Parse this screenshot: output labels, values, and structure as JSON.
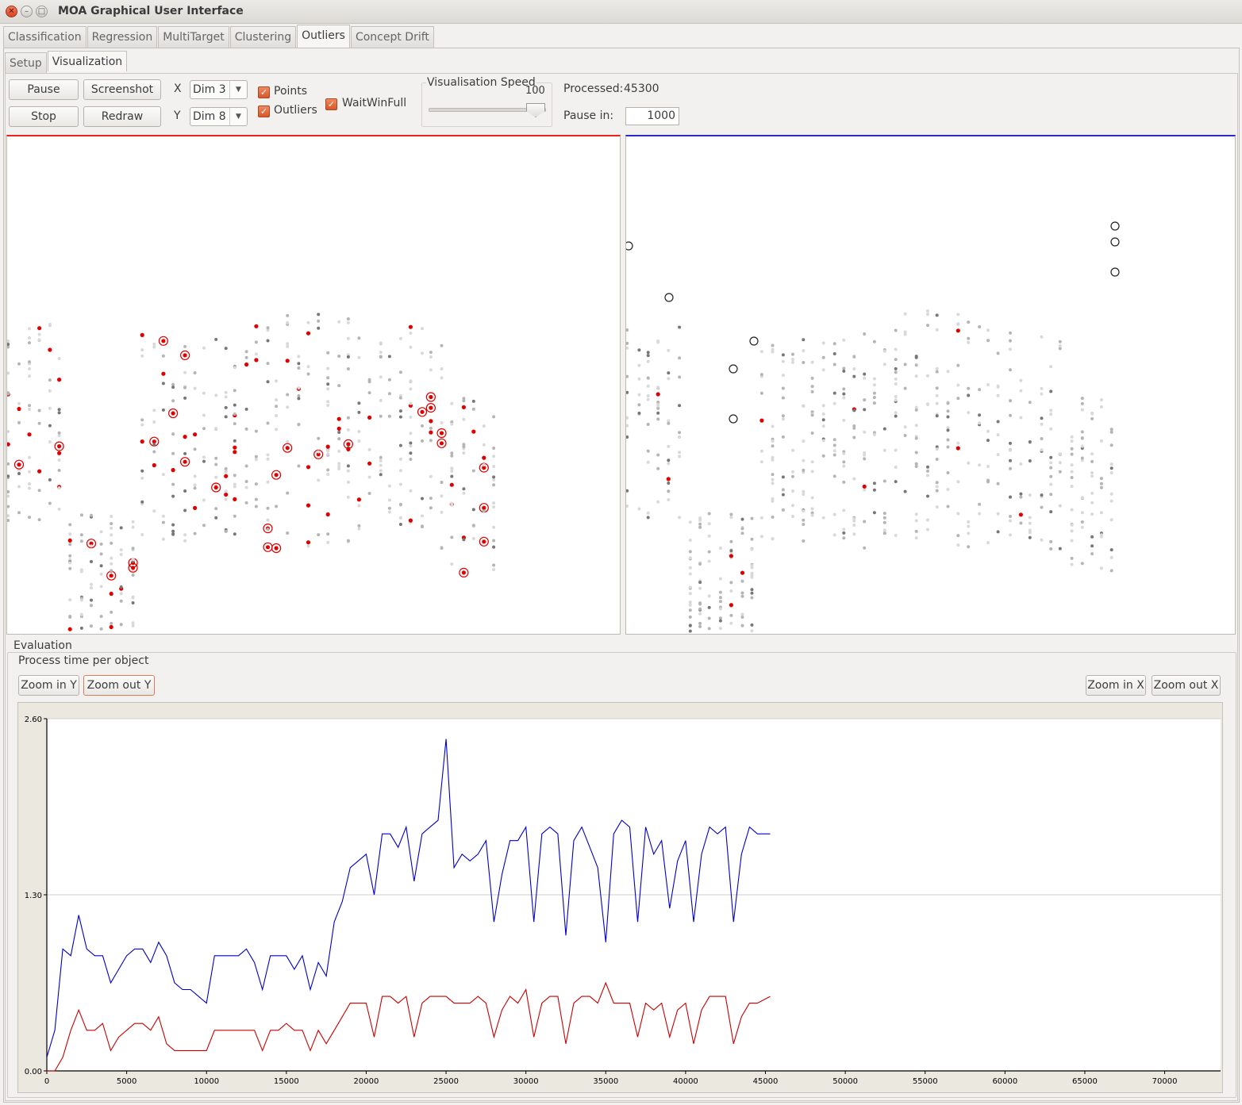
{
  "window": {
    "title": "MOA Graphical User Interface"
  },
  "tabs": [
    "Classification",
    "Regression",
    "MultiTarget",
    "Clustering",
    "Outliers",
    "Concept Drift"
  ],
  "active_tab": "Outliers",
  "subtabs": [
    "Setup",
    "Visualization"
  ],
  "active_subtab": "Visualization",
  "controls": {
    "pause": "Pause",
    "screenshot": "Screenshot",
    "stop": "Stop",
    "redraw": "Redraw",
    "x_label": "X",
    "y_label": "Y",
    "x_dim": "Dim 3",
    "y_dim": "Dim 8",
    "points": "Points",
    "outliers": "Outliers",
    "waitwinfull": "WaitWinFull",
    "speed_title": "Visualisation Speed",
    "speed_value": "100",
    "processed_label": "Processed:",
    "processed_value": "45300",
    "pause_in_label": "Pause in:",
    "pause_in_value": "1000"
  },
  "colors": {
    "left_panel_accent": "#e8231b",
    "right_panel_accent": "#2a2ac8",
    "series_a": "#0000c8",
    "series_b": "#c80000"
  },
  "evaluation": {
    "title": "Evaluation",
    "subtitle": "Process time per object",
    "zoom_in_y": "Zoom in Y",
    "zoom_out_y": "Zoom out Y",
    "zoom_in_x": "Zoom in X",
    "zoom_out_x": "Zoom out X"
  },
  "chart_data": {
    "type": "line",
    "title": "",
    "xlabel": "",
    "ylabel": "",
    "xlim": [
      0,
      73500
    ],
    "ylim": [
      0,
      2.6
    ],
    "x_ticks": [
      "0",
      "5000",
      "10000",
      "15000",
      "20000",
      "25000",
      "30000",
      "35000",
      "40000",
      "45000",
      "50000",
      "55000",
      "60000",
      "65000",
      "70000"
    ],
    "y_ticks": [
      "0.00",
      "1.30",
      "2.60"
    ],
    "grid": "horizontal",
    "series": [
      {
        "color": "#0000c8",
        "x": [
          0,
          500,
          1000,
          1500,
          2000,
          2500,
          3000,
          3500,
          4000,
          4500,
          5000,
          5500,
          6000,
          6500,
          7000,
          7500,
          8000,
          8500,
          9000,
          9500,
          10000,
          10500,
          11000,
          11500,
          12000,
          12500,
          13000,
          13500,
          14000,
          14500,
          15000,
          15500,
          16000,
          16500,
          17000,
          17500,
          18000,
          18500,
          19000,
          19500,
          20000,
          20500,
          21000,
          21500,
          22000,
          22500,
          23000,
          23500,
          24000,
          24500,
          25000,
          25500,
          26000,
          26500,
          27000,
          27500,
          28000,
          28500,
          29000,
          29500,
          30000,
          30500,
          31000,
          31500,
          32000,
          32500,
          33000,
          33500,
          34000,
          34500,
          35000,
          35500,
          36000,
          36500,
          37000,
          37500,
          38000,
          38500,
          39000,
          39500,
          40000,
          40500,
          41000,
          41500,
          42000,
          42500,
          43000,
          43500,
          44000,
          44500,
          45300
        ],
        "values": [
          0.1,
          0.3,
          0.9,
          0.85,
          1.15,
          0.9,
          0.85,
          0.85,
          0.65,
          0.75,
          0.85,
          0.9,
          0.9,
          0.8,
          0.95,
          0.85,
          0.65,
          0.6,
          0.6,
          0.55,
          0.5,
          0.85,
          0.85,
          0.85,
          0.85,
          0.9,
          0.8,
          0.6,
          0.85,
          0.85,
          0.85,
          0.75,
          0.85,
          0.6,
          0.8,
          0.7,
          1.1,
          1.25,
          1.5,
          1.55,
          1.6,
          1.3,
          1.75,
          1.75,
          1.65,
          1.8,
          1.4,
          1.75,
          1.8,
          1.85,
          2.45,
          1.5,
          1.6,
          1.55,
          1.6,
          1.7,
          1.1,
          1.45,
          1.7,
          1.7,
          1.8,
          1.1,
          1.75,
          1.8,
          1.75,
          1.0,
          1.7,
          1.8,
          1.65,
          1.5,
          0.95,
          1.75,
          1.85,
          1.8,
          1.1,
          1.8,
          1.6,
          1.7,
          1.2,
          1.55,
          1.7,
          1.1,
          1.6,
          1.8,
          1.75,
          1.8,
          1.1,
          1.6,
          1.8,
          1.75,
          1.75
        ]
      },
      {
        "color": "#c80000",
        "x": [
          0,
          500,
          1000,
          1500,
          2000,
          2500,
          3000,
          3500,
          4000,
          4500,
          5000,
          5500,
          6000,
          6500,
          7000,
          7500,
          8000,
          8500,
          9000,
          9500,
          10000,
          10500,
          11000,
          11500,
          12000,
          12500,
          13000,
          13500,
          14000,
          14500,
          15000,
          15500,
          16000,
          16500,
          17000,
          17500,
          18000,
          18500,
          19000,
          19500,
          20000,
          20500,
          21000,
          21500,
          22000,
          22500,
          23000,
          23500,
          24000,
          24500,
          25000,
          25500,
          26000,
          26500,
          27000,
          27500,
          28000,
          28500,
          29000,
          29500,
          30000,
          30500,
          31000,
          31500,
          32000,
          32500,
          33000,
          33500,
          34000,
          34500,
          35000,
          35500,
          36000,
          36500,
          37000,
          37500,
          38000,
          38500,
          39000,
          39500,
          40000,
          40500,
          41000,
          41500,
          42000,
          42500,
          43000,
          43500,
          44000,
          44500,
          45300
        ],
        "values": [
          0.0,
          0.0,
          0.1,
          0.3,
          0.45,
          0.3,
          0.3,
          0.35,
          0.15,
          0.25,
          0.3,
          0.35,
          0.35,
          0.3,
          0.4,
          0.2,
          0.15,
          0.15,
          0.15,
          0.15,
          0.15,
          0.3,
          0.3,
          0.3,
          0.3,
          0.3,
          0.3,
          0.15,
          0.3,
          0.3,
          0.35,
          0.3,
          0.3,
          0.15,
          0.3,
          0.2,
          0.3,
          0.4,
          0.5,
          0.5,
          0.5,
          0.25,
          0.55,
          0.55,
          0.5,
          0.55,
          0.25,
          0.5,
          0.55,
          0.55,
          0.55,
          0.5,
          0.5,
          0.5,
          0.55,
          0.5,
          0.25,
          0.45,
          0.55,
          0.5,
          0.6,
          0.25,
          0.5,
          0.55,
          0.55,
          0.2,
          0.5,
          0.55,
          0.55,
          0.5,
          0.65,
          0.5,
          0.5,
          0.5,
          0.25,
          0.5,
          0.45,
          0.5,
          0.25,
          0.45,
          0.5,
          0.2,
          0.45,
          0.55,
          0.55,
          0.55,
          0.2,
          0.4,
          0.5,
          0.5,
          0.55
        ]
      }
    ]
  }
}
